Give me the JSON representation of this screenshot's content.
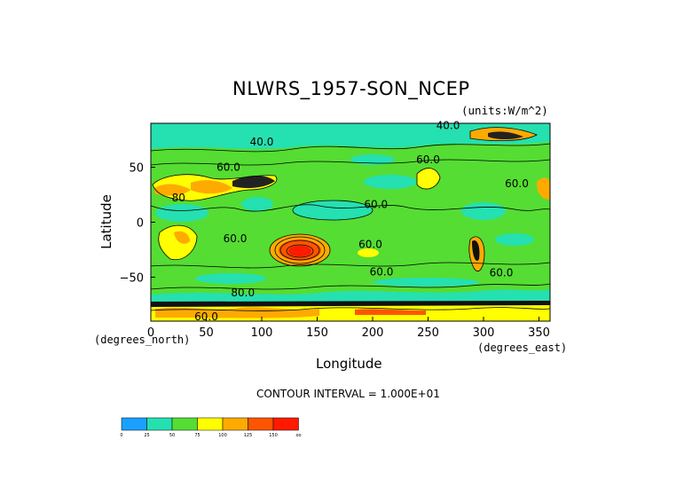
{
  "chart_data": {
    "type": "heatmap",
    "title": "NLWRS_1957-SON_NCEP",
    "units": "(units:W/m^2)",
    "xlabel": "Longitude",
    "ylabel": "Latitude",
    "x_unit_label": "(degrees_east)",
    "y_unit_label": "(degrees_north)",
    "xlim": [
      0,
      360
    ],
    "ylim": [
      -90,
      90
    ],
    "x_ticks": [
      0,
      50,
      100,
      150,
      200,
      250,
      300,
      350
    ],
    "y_ticks": [
      50,
      0,
      -50
    ],
    "contour_interval_text": "CONTOUR INTERVAL = 1.000E+01",
    "contour_labels": [
      {
        "text": "40.0",
        "lon": 268,
        "lat": 88
      },
      {
        "text": "40.0",
        "lon": 100,
        "lat": 73
      },
      {
        "text": "60.0",
        "lon": 250,
        "lat": 57
      },
      {
        "text": "60.0",
        "lon": 70,
        "lat": 50
      },
      {
        "text": "60.0",
        "lon": 330,
        "lat": 35
      },
      {
        "text": "80",
        "lon": 25,
        "lat": 22
      },
      {
        "text": "60.0",
        "lon": 203,
        "lat": 16
      },
      {
        "text": "60.0",
        "lon": 76,
        "lat": -15
      },
      {
        "text": "60.0",
        "lon": 198,
        "lat": -20
      },
      {
        "text": "60.0",
        "lon": 208,
        "lat": -45
      },
      {
        "text": "60.0",
        "lon": 316,
        "lat": -46
      },
      {
        "text": "80.0",
        "lon": 83,
        "lat": -64
      },
      {
        "text": "60.0",
        "lon": 50,
        "lat": -86
      }
    ],
    "colorbar": {
      "ticks": [
        "0",
        "25",
        "50",
        "75",
        "100",
        "125",
        "150",
        "oo"
      ],
      "colors": [
        "#1aa0ff",
        "#25e0b0",
        "#55dd33",
        "#ffff00",
        "#ffaa00",
        "#ff5500",
        "#ff1a00"
      ]
    }
  }
}
